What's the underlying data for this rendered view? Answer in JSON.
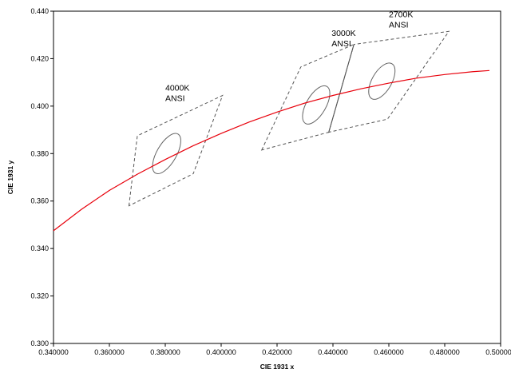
{
  "chart_data": {
    "type": "line",
    "xlabel": "CIE 1931 x",
    "ylabel": "CIE 1931 y",
    "xlim": [
      0.34,
      0.5
    ],
    "ylim": [
      0.3,
      0.44
    ],
    "x_ticks": [
      "0.340000",
      "0.360000",
      "0.380000",
      "0.400000",
      "0.420000",
      "0.440000",
      "0.460000",
      "0.480000",
      "0.500000"
    ],
    "y_ticks": [
      "0.300",
      "0.320",
      "0.340",
      "0.360",
      "0.380",
      "0.400",
      "0.420",
      "0.440"
    ],
    "grid": false,
    "series": [
      {
        "color": "#e8000b",
        "style": "solid",
        "x": [
          0.34,
          0.35,
          0.36,
          0.37,
          0.38,
          0.39,
          0.4,
          0.41,
          0.42,
          0.43,
          0.44,
          0.45,
          0.46,
          0.47,
          0.48,
          0.49,
          0.496
        ],
        "y": [
          0.3475,
          0.3565,
          0.3645,
          0.3713,
          0.3775,
          0.3833,
          0.3885,
          0.3933,
          0.3975,
          0.4013,
          0.4045,
          0.4073,
          0.4097,
          0.4118,
          0.4133,
          0.4145,
          0.415
        ]
      }
    ],
    "quadrangles": [
      {
        "name": "4000K",
        "corners": [
          [
            0.367,
            0.358
          ],
          [
            0.37,
            0.3875
          ],
          [
            0.4005,
            0.4045
          ],
          [
            0.39,
            0.3715
          ]
        ]
      },
      {
        "name": "3000K",
        "corners": [
          [
            0.4145,
            0.3815
          ],
          [
            0.4285,
            0.4165
          ],
          [
            0.4475,
            0.426
          ],
          [
            0.4385,
            0.389
          ]
        ]
      },
      {
        "name": "2700K",
        "corners": [
          [
            0.4385,
            0.389
          ],
          [
            0.4475,
            0.426
          ],
          [
            0.4815,
            0.4315
          ],
          [
            0.4595,
            0.3945
          ]
        ]
      }
    ],
    "ellipses": [
      {
        "center": [
          0.3805,
          0.38
        ],
        "rx": 0.0035,
        "ry": 0.0095,
        "rotate_deg": 30
      },
      {
        "center": [
          0.434,
          0.4005
        ],
        "rx": 0.0035,
        "ry": 0.009,
        "rotate_deg": 30
      },
      {
        "center": [
          0.4575,
          0.4105
        ],
        "rx": 0.0035,
        "ry": 0.0085,
        "rotate_deg": 30
      }
    ],
    "annotations": [
      {
        "lines": [
          "4000K",
          "ANSI"
        ],
        "x": 0.38,
        "y": 0.4065
      },
      {
        "lines": [
          "3000K",
          "ANSI"
        ],
        "x": 0.4395,
        "y": 0.4295
      },
      {
        "lines": [
          "2700K",
          "ANSI"
        ],
        "x": 0.46,
        "y": 0.4375
      }
    ]
  }
}
